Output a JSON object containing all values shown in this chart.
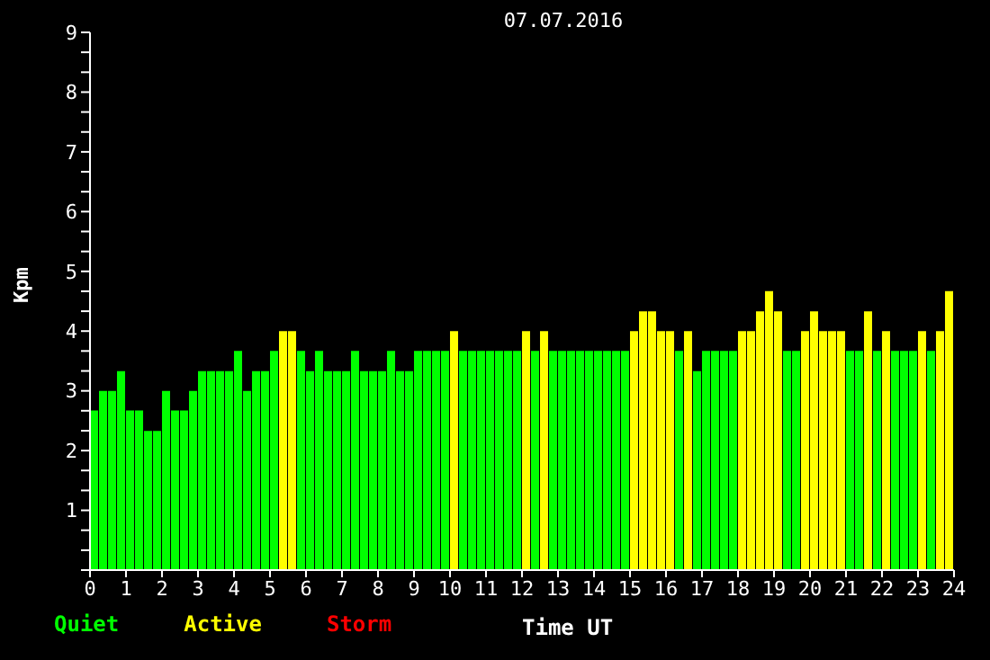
{
  "chart_data": {
    "type": "bar",
    "title": "07.07.2016",
    "xlabel": "Time UT",
    "ylabel": "Kpm",
    "stacked": true,
    "legend": "bottom left",
    "x": [
      0.125,
      0.375,
      0.625,
      0.875,
      1.125,
      1.375,
      1.625,
      1.875,
      2.125,
      2.375,
      2.625,
      2.875,
      3.125,
      3.375,
      3.625,
      3.875,
      4.125,
      4.375,
      4.625,
      4.875,
      5.125,
      5.375,
      5.625,
      5.875,
      6.125,
      6.375,
      6.625,
      6.875,
      7.125,
      7.375,
      7.625,
      7.875,
      8.125,
      8.375,
      8.625,
      8.875,
      9.125,
      9.375,
      9.625,
      9.875,
      10.125,
      10.375,
      10.625,
      10.875,
      11.125,
      11.375,
      11.625,
      11.875,
      12.125,
      12.375,
      12.625,
      12.875,
      13.125,
      13.375,
      13.625,
      13.875,
      14.125,
      14.375,
      14.625,
      14.875,
      15.125,
      15.375,
      15.625,
      15.875,
      16.125,
      16.375,
      16.625,
      16.875,
      17.125,
      17.375,
      17.625,
      17.875,
      18.125,
      18.375,
      18.625,
      18.875,
      19.125,
      19.375,
      19.625,
      19.875,
      20.125,
      20.375,
      20.625,
      20.875,
      21.125,
      21.375,
      21.625,
      21.875,
      22.125,
      22.375,
      22.625,
      22.875,
      23.125,
      23.375,
      23.625,
      23.875
    ],
    "series": [
      {
        "name": "Quiet",
        "color": "#00ff00",
        "values": [
          2.67,
          3,
          3,
          3.33,
          2.67,
          2.67,
          2.33,
          2.33,
          3,
          2.67,
          2.67,
          3,
          3.33,
          3.33,
          3.33,
          3.33,
          3.67,
          3,
          3.33,
          3.33,
          3.67,
          null,
          null,
          3.67,
          3.33,
          3.67,
          3.33,
          3.33,
          3.33,
          3.67,
          3.33,
          3.33,
          3.33,
          3.67,
          3.33,
          3.33,
          3.67,
          3.67,
          3.67,
          3.67,
          null,
          3.67,
          3.67,
          3.67,
          3.67,
          3.67,
          3.67,
          3.67,
          null,
          3.67,
          null,
          3.67,
          3.67,
          3.67,
          3.67,
          3.67,
          3.67,
          3.67,
          3.67,
          3.67,
          null,
          null,
          null,
          null,
          null,
          3.67,
          null,
          3.33,
          3.67,
          3.67,
          3.67,
          3.67,
          null,
          null,
          null,
          null,
          null,
          3.67,
          3.67,
          null,
          null,
          null,
          null,
          null,
          3.67,
          3.67,
          null,
          3.67,
          null,
          3.67,
          3.67,
          3.67,
          null,
          3.67,
          null,
          null
        ]
      },
      {
        "name": "Active",
        "color": "#ffff00",
        "values": [
          null,
          null,
          null,
          null,
          null,
          null,
          null,
          null,
          null,
          null,
          null,
          null,
          null,
          null,
          null,
          null,
          null,
          null,
          null,
          null,
          null,
          4,
          4,
          null,
          null,
          null,
          null,
          null,
          null,
          null,
          null,
          null,
          null,
          null,
          null,
          null,
          null,
          null,
          null,
          null,
          4,
          null,
          null,
          null,
          null,
          null,
          null,
          null,
          4,
          null,
          4,
          null,
          null,
          null,
          null,
          null,
          null,
          null,
          null,
          null,
          4,
          4.33,
          4.33,
          4,
          4,
          null,
          4,
          null,
          null,
          null,
          null,
          null,
          4,
          4,
          4.33,
          4.67,
          4.33,
          null,
          null,
          4,
          4.33,
          4,
          4,
          4,
          null,
          null,
          4.33,
          null,
          4,
          null,
          null,
          null,
          4,
          null,
          4,
          4.67
        ]
      },
      {
        "name": "Storm",
        "color": "#ff0000",
        "values": [
          null,
          null,
          null,
          null,
          null,
          null,
          null,
          null,
          null,
          null,
          null,
          null,
          null,
          null,
          null,
          null,
          null,
          null,
          null,
          null,
          null,
          null,
          null,
          null,
          null,
          null,
          null,
          null,
          null,
          null,
          null,
          null,
          null,
          null,
          null,
          null,
          null,
          null,
          null,
          null,
          null,
          null,
          null,
          null,
          null,
          null,
          null,
          null,
          null,
          null,
          null,
          null,
          null,
          null,
          null,
          null,
          null,
          null,
          null,
          null,
          null,
          null,
          null,
          null,
          null,
          null,
          null,
          null,
          null,
          null,
          null,
          null,
          null,
          null,
          null,
          null,
          null,
          null,
          null,
          null,
          null,
          null,
          null,
          null,
          null,
          null,
          null,
          null,
          null,
          null,
          null,
          null,
          null,
          null,
          null,
          null
        ]
      }
    ],
    "xlim": [
      0,
      24
    ],
    "xticks": [
      0,
      1,
      2,
      3,
      4,
      5,
      6,
      7,
      8,
      9,
      10,
      11,
      12,
      13,
      14,
      15,
      16,
      17,
      18,
      19,
      20,
      21,
      22,
      23,
      24
    ],
    "ylim": [
      0,
      9
    ],
    "yticks": [
      {
        "value": 0,
        "label": null
      },
      {
        "value": 0.333,
        "label": null
      },
      {
        "value": 0.667,
        "label": null
      },
      1,
      {
        "value": 1.333,
        "label": null
      },
      {
        "value": 1.667,
        "label": null
      },
      2,
      {
        "value": 2.333,
        "label": null
      },
      {
        "value": 2.667,
        "label": null
      },
      3,
      {
        "value": 3.333,
        "label": null
      },
      {
        "value": 3.667,
        "label": null
      },
      4,
      {
        "value": 4.333,
        "label": null
      },
      {
        "value": 4.667,
        "label": null
      },
      5,
      {
        "value": 5.333,
        "label": null
      },
      {
        "value": 5.667,
        "label": null
      },
      6,
      {
        "value": 6.333,
        "label": null
      },
      {
        "value": 6.667,
        "label": null
      },
      7,
      {
        "value": 7.333,
        "label": null
      },
      {
        "value": 7.667,
        "label": null
      },
      8,
      {
        "value": 8.333,
        "label": null
      },
      {
        "value": 8.667,
        "label": null
      },
      9
    ]
  }
}
